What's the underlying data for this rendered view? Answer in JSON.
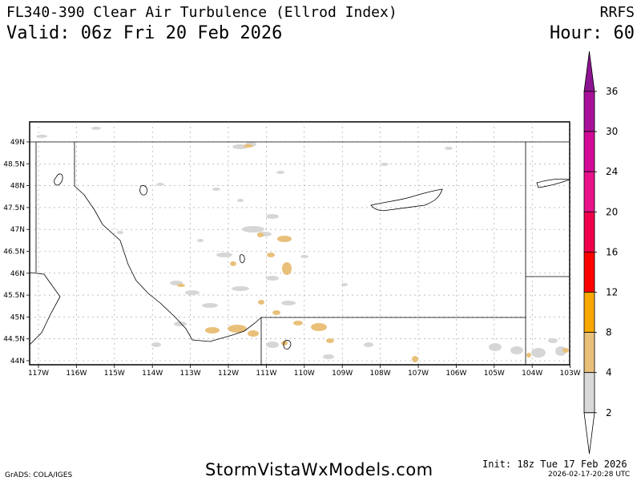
{
  "header": {
    "title": "FL340-390 Clear Air Turbulence (Ellrod Index)",
    "model": "RRFS",
    "valid": "Valid: 06z Fri 20 Feb 2026",
    "hour": "Hour: 60"
  },
  "footer": {
    "site": "StormVistaWxModels.com",
    "grads": "GrADS: COLA/IGES",
    "init": "Init: 18z Tue 17 Feb 2026",
    "timestamp": "2026-02-17-20:28 UTC"
  },
  "map": {
    "lat_labels": [
      "49N",
      "48.5N",
      "48N",
      "47.5N",
      "47N",
      "46.5N",
      "46N",
      "45.5N",
      "45N",
      "44.5N",
      "44N"
    ],
    "lon_labels": [
      "117W",
      "116W",
      "115W",
      "114W",
      "113W",
      "112W",
      "111W",
      "110W",
      "109W",
      "108W",
      "107W",
      "106W",
      "105W",
      "104W",
      "103W"
    ]
  },
  "colorbar": {
    "levels": [
      "2",
      "4",
      "8",
      "12",
      "16",
      "20",
      "24",
      "30",
      "36"
    ],
    "colors": [
      "#d9d9d9",
      "#e9c07a",
      "#f8a800",
      "#ff0000",
      "#f0004a",
      "#e8128a",
      "#d20a98",
      "#a8109a",
      "#8c1490"
    ]
  }
}
